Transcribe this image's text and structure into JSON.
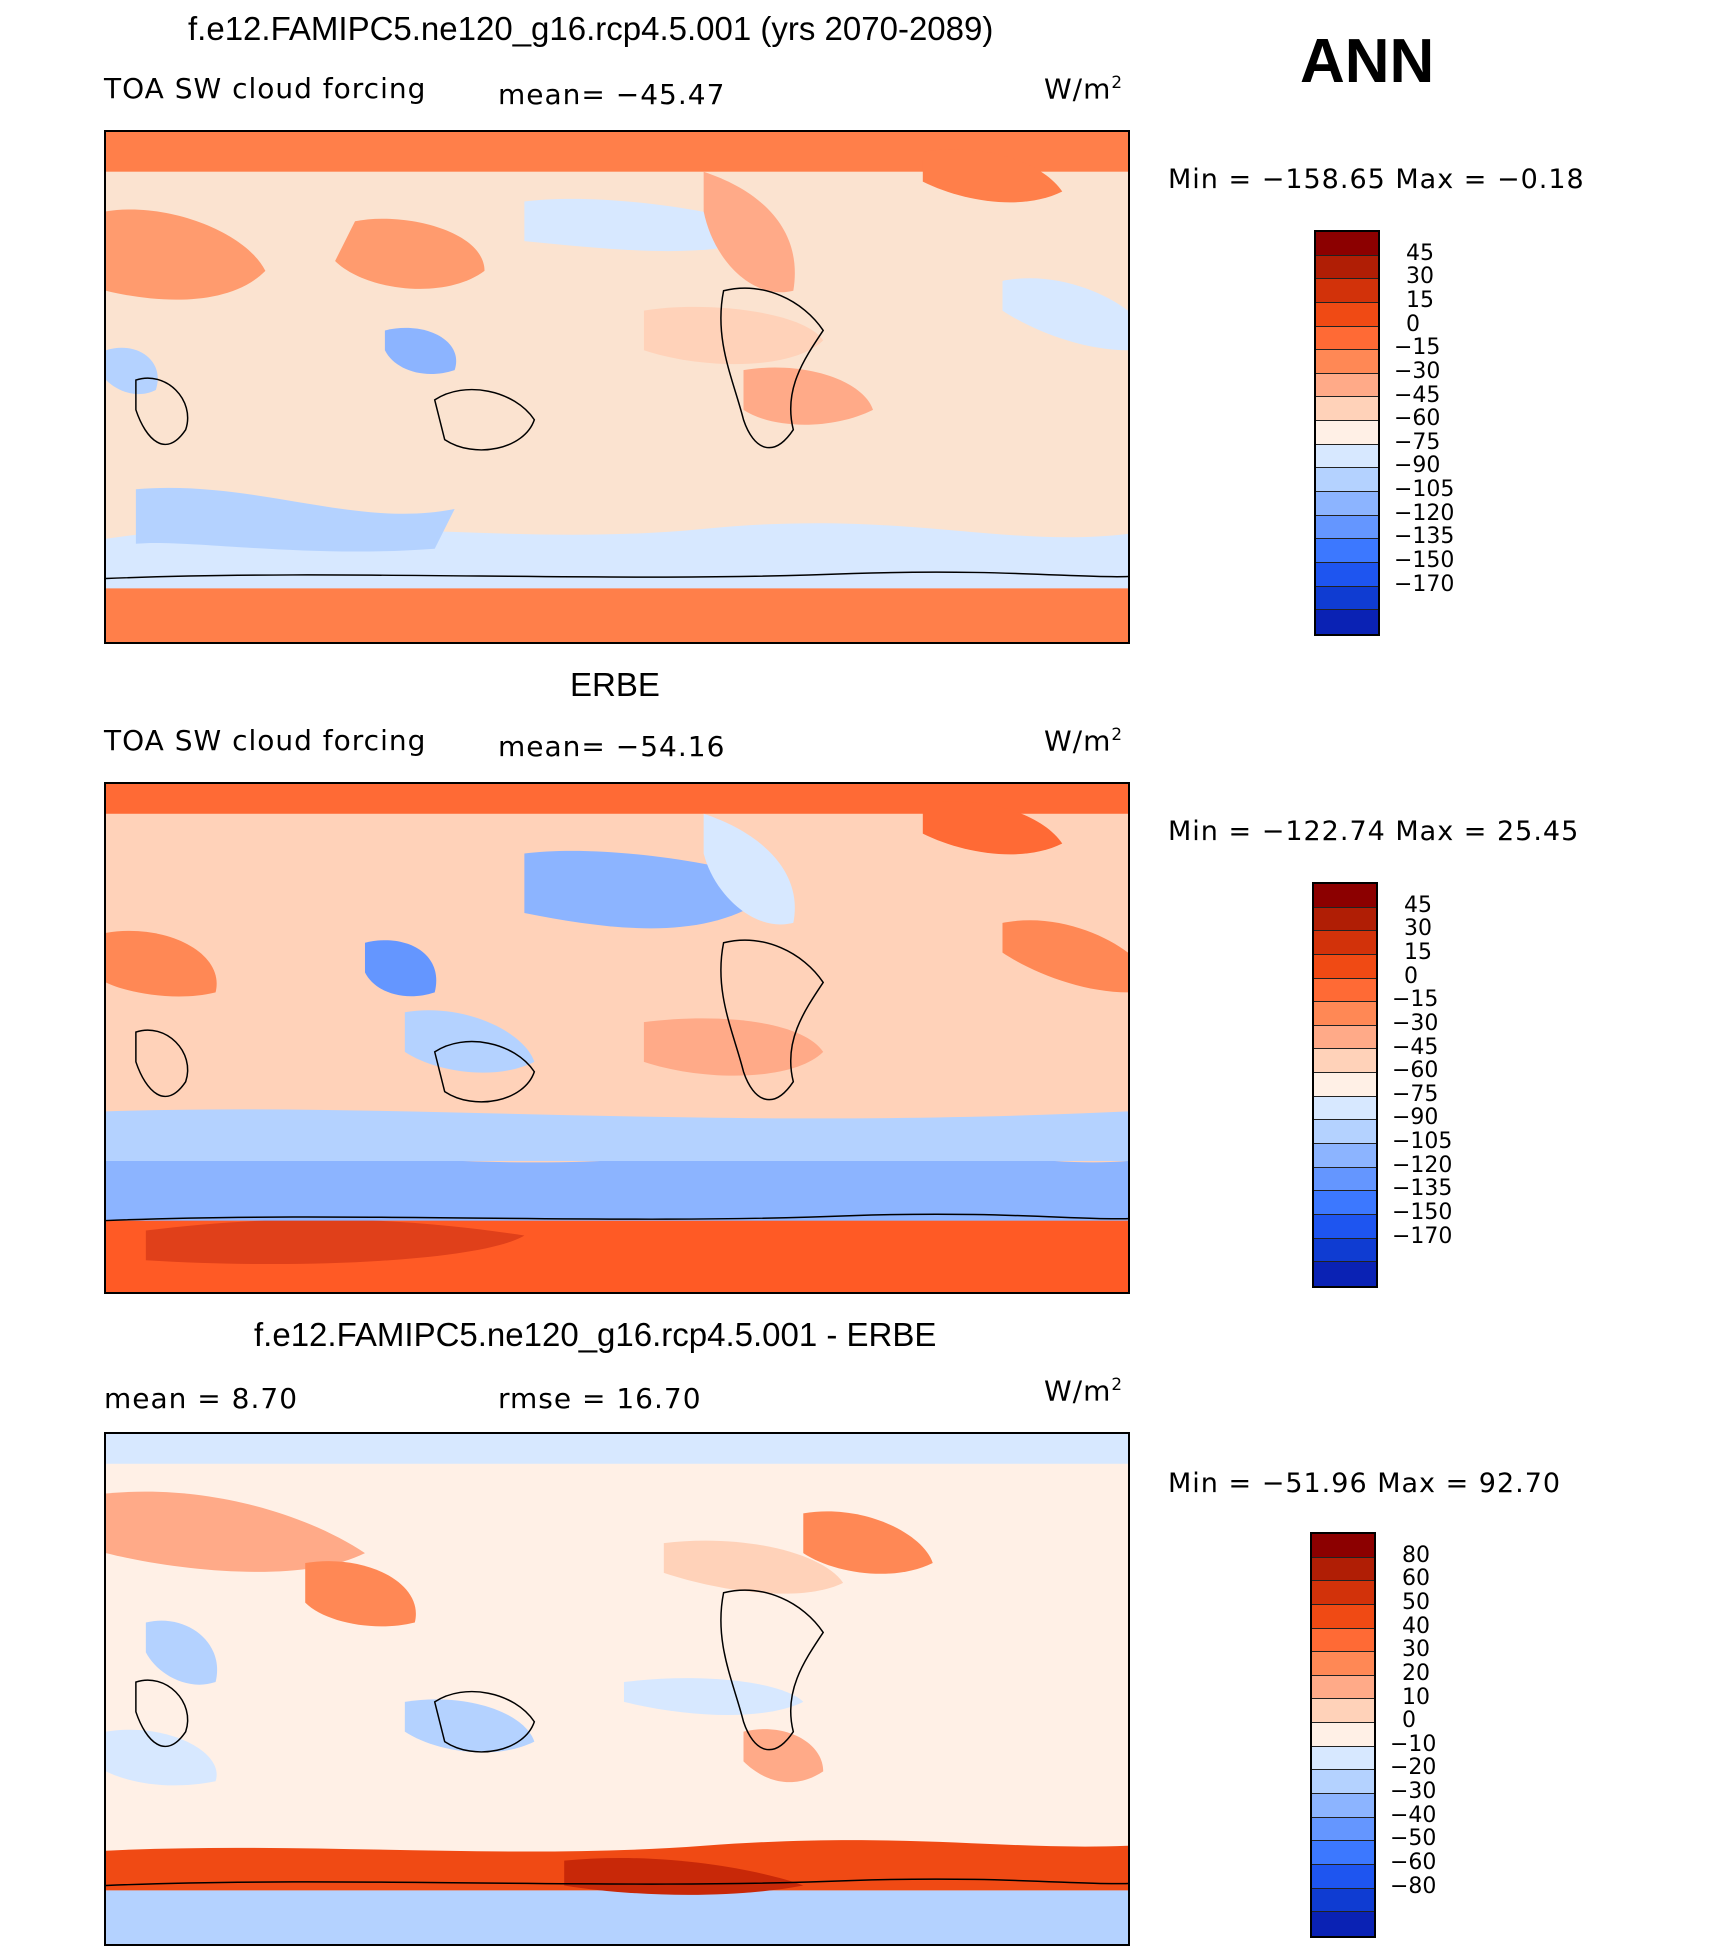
{
  "figure": {
    "season": "ANN",
    "model_title": "f.e12.FAMIPC5.ne120_g16.rcp4.5.001 (yrs 2070-2089)",
    "obs_title": "ERBE",
    "diff_title": "f.e12.FAMIPC5.ne120_g16.rcp4.5.001 - ERBE"
  },
  "colors": {
    "main_levels": [
      "#fefefe",
      "#0a0a8c",
      "#0a22b4",
      "#0f3cd2",
      "#1e55f0",
      "#3c78ff",
      "#6496ff",
      "#8cb4ff",
      "#b4d2ff",
      "#d7e8ff",
      "#fff0e6",
      "#ffd2b9",
      "#ffaa88",
      "#ff8855",
      "#ff6a35",
      "#f04010",
      "#c82808",
      "#8c0000"
    ],
    "diff_levels": [
      "#0a0a8c",
      "#0a22b4",
      "#0f3cd2",
      "#1e55f0",
      "#3c78ff",
      "#6496ff",
      "#8cb4ff",
      "#b4d2ff",
      "#d7e8ff",
      "#fff0e6",
      "#ffd2b9",
      "#ffaa88",
      "#ff8855",
      "#ff6a35",
      "#f04010",
      "#c82808",
      "#8c0000"
    ]
  },
  "chart_data": [
    {
      "type": "heatmap",
      "title": "f.e12.FAMIPC5.ne120_g16.rcp4.5.001 (yrs 2070-2089)",
      "left_label": "TOA SW cloud forcing",
      "mean_label": "mean= −45.47",
      "units": "W/m",
      "units_sup": "2",
      "minmax": "Min = −158.65 Max =  −0.18",
      "colorbar_labels": [
        "45",
        "30",
        "15",
        "0",
        "−15",
        "−30",
        "−45",
        "−60",
        "−75",
        "−90",
        "−105",
        "−120",
        "−135",
        "−150",
        "−170"
      ],
      "colorbar_colors": [
        "#8c0000",
        "#b01e05",
        "#d2320a",
        "#f04a14",
        "#ff6a35",
        "#ff8855",
        "#ffaa88",
        "#ffd2b9",
        "#fff0e6",
        "#d7e8ff",
        "#b4d2ff",
        "#8cb4ff",
        "#6496ff",
        "#3c78ff",
        "#1e55f0",
        "#0f3cd2",
        "#0a22b4"
      ]
    },
    {
      "type": "heatmap",
      "title": "ERBE",
      "left_label": "TOA SW cloud forcing",
      "mean_label": "mean= −54.16",
      "units": "W/m",
      "units_sup": "2",
      "minmax": "Min = −122.74 Max =   25.45",
      "colorbar_labels": [
        "45",
        "30",
        "15",
        "0",
        "−15",
        "−30",
        "−45",
        "−60",
        "−75",
        "−90",
        "−105",
        "−120",
        "−135",
        "−150",
        "−170"
      ],
      "colorbar_colors": [
        "#8c0000",
        "#b01e05",
        "#d2320a",
        "#f04a14",
        "#ff6a35",
        "#ff8855",
        "#ffaa88",
        "#ffd2b9",
        "#fff0e6",
        "#d7e8ff",
        "#b4d2ff",
        "#8cb4ff",
        "#6496ff",
        "#3c78ff",
        "#1e55f0",
        "#0f3cd2",
        "#0a22b4"
      ]
    },
    {
      "type": "heatmap",
      "title": "f.e12.FAMIPC5.ne120_g16.rcp4.5.001 - ERBE",
      "left_label": "mean =    8.70",
      "mean_label": "rmse =   16.70",
      "units": "W/m",
      "units_sup": "2",
      "minmax": "Min = −51.96 Max =  92.70",
      "colorbar_labels": [
        "80",
        "60",
        "50",
        "40",
        "30",
        "20",
        "10",
        "0",
        "−10",
        "−20",
        "−30",
        "−40",
        "−50",
        "−60",
        "−80"
      ],
      "colorbar_colors": [
        "#8c0000",
        "#b01e05",
        "#d2320a",
        "#f04a14",
        "#ff6a35",
        "#ff8855",
        "#ffaa88",
        "#ffd2b9",
        "#fff0e6",
        "#d7e8ff",
        "#b4d2ff",
        "#8cb4ff",
        "#6496ff",
        "#3c78ff",
        "#1e55f0",
        "#0f3cd2",
        "#0a22b4"
      ]
    }
  ]
}
